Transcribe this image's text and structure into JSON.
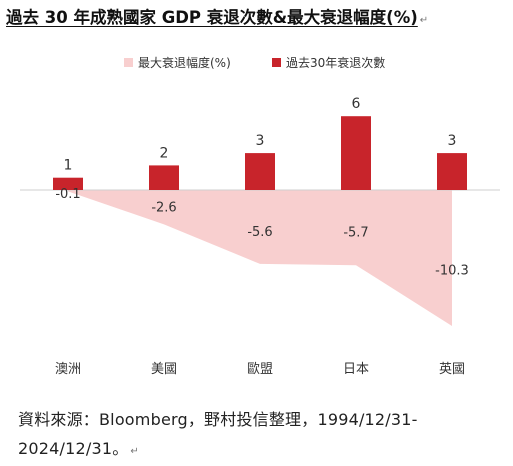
{
  "title": "過去 30 年成熟國家 GDP 衰退次數&最大衰退幅度(%)",
  "paragraph_mark": "↵",
  "source_line1": "資料來源：Bloomberg，野村投信整理，1994/12/31-",
  "source_line2": "2024/12/31。",
  "colors": {
    "recessions": "#c8242b",
    "drawdown": "#f8cfcf",
    "label_text": "#333333",
    "axis": "#cfcfcf"
  },
  "chart_data": {
    "type": "bar",
    "title": "",
    "categories": [
      "澳洲",
      "美國",
      "歐盟",
      "日本",
      "英國"
    ],
    "series": [
      {
        "name": "最大衰退幅度(%)",
        "type": "area",
        "values": [
          -0.1,
          -2.6,
          -5.6,
          -5.7,
          -10.3
        ]
      },
      {
        "name": "過去30年衰退次數",
        "type": "bar",
        "values": [
          1,
          2,
          3,
          6,
          3
        ]
      }
    ],
    "value_labels": {
      "counts": [
        "1",
        "2",
        "3",
        "6",
        "3"
      ],
      "drawdowns": [
        "-0.1",
        "-2.6",
        "-5.6",
        "-5.7",
        "-10.3"
      ]
    },
    "legend_position": "top",
    "grid": false,
    "ylim": [
      -10.3,
      6
    ]
  }
}
